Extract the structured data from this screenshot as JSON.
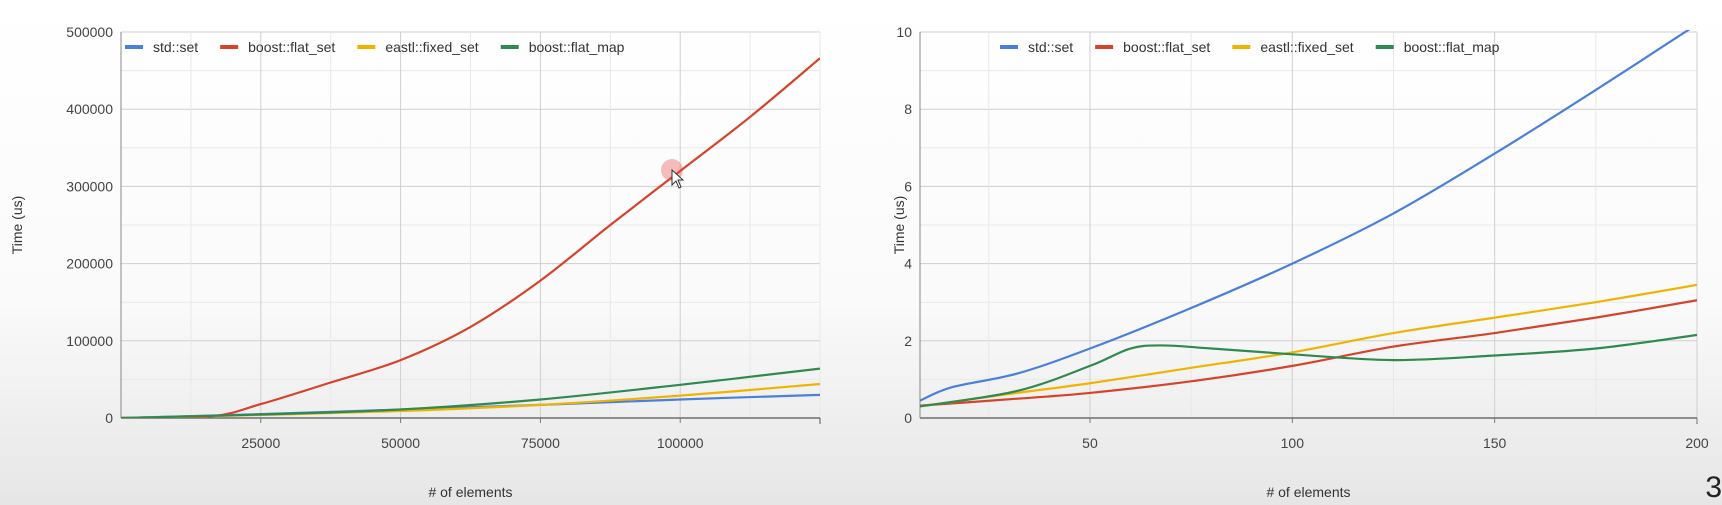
{
  "chart_data": [
    {
      "type": "line",
      "title": "",
      "xlabel": "# of elements",
      "ylabel": "Time (us)",
      "xlim": [
        0,
        125000
      ],
      "ylim": [
        0,
        500000
      ],
      "xticks": [
        25000,
        50000,
        75000,
        100000
      ],
      "yticks": [
        0,
        100000,
        200000,
        300000,
        400000,
        500000
      ],
      "grid": true,
      "legend_position": "top-left",
      "series": [
        {
          "name": "std::set",
          "color": "#4a80d9",
          "x": [
            0,
            25000,
            50000,
            75000,
            100000,
            125000
          ],
          "y": [
            0,
            5000,
            11000,
            17000,
            24000,
            30000
          ]
        },
        {
          "name": "boost::flat_set",
          "color": "#d5432b",
          "x": [
            0,
            16000,
            25000,
            37500,
            50000,
            62500,
            75000,
            87500,
            100000,
            112500,
            125000
          ],
          "y": [
            0,
            2000,
            18000,
            46000,
            75000,
            118000,
            178000,
            250000,
            320000,
            390000,
            466000
          ]
        },
        {
          "name": "eastl::fixed_set",
          "color": "#f0b400",
          "x": [
            0,
            25000,
            50000,
            75000,
            100000,
            125000
          ],
          "y": [
            0,
            4000,
            9000,
            17000,
            29000,
            44000
          ]
        },
        {
          "name": "boost::flat_map",
          "color": "#2e8a4e",
          "x": [
            0,
            25000,
            50000,
            75000,
            100000,
            125000
          ],
          "y": [
            0,
            4500,
            11000,
            24000,
            43000,
            64000
          ]
        }
      ]
    },
    {
      "type": "line",
      "title": "",
      "xlabel": "# of elements",
      "ylabel": "Time (us)",
      "xlim": [
        8,
        200
      ],
      "ylim": [
        0,
        10
      ],
      "xticks": [
        50,
        100,
        150,
        200
      ],
      "yticks": [
        0,
        2,
        4,
        6,
        8,
        10
      ],
      "grid": true,
      "legend_position": "top-left",
      "series": [
        {
          "name": "std::set",
          "color": "#4a80d9",
          "x": [
            8,
            16,
            32,
            50,
            75,
            100,
            125,
            150,
            175,
            200
          ],
          "y": [
            0.45,
            0.8,
            1.15,
            1.8,
            2.85,
            4.0,
            5.3,
            6.85,
            8.5,
            10.2
          ]
        },
        {
          "name": "boost::flat_set",
          "color": "#d5432b",
          "x": [
            8,
            32,
            50,
            75,
            100,
            125,
            150,
            175,
            200
          ],
          "y": [
            0.32,
            0.5,
            0.65,
            0.95,
            1.35,
            1.85,
            2.2,
            2.6,
            3.05
          ]
        },
        {
          "name": "eastl::fixed_set",
          "color": "#f0b400",
          "x": [
            8,
            32,
            50,
            75,
            100,
            125,
            150,
            175,
            200
          ],
          "y": [
            0.3,
            0.65,
            0.9,
            1.3,
            1.7,
            2.2,
            2.6,
            3.0,
            3.45
          ]
        },
        {
          "name": "boost::flat_map",
          "color": "#2e8a4e",
          "x": [
            8,
            32,
            50,
            60,
            68,
            80,
            100,
            125,
            150,
            175,
            200
          ],
          "y": [
            0.3,
            0.7,
            1.35,
            1.8,
            1.88,
            1.8,
            1.65,
            1.5,
            1.62,
            1.8,
            2.15
          ]
        }
      ]
    }
  ],
  "slide_number": "3"
}
